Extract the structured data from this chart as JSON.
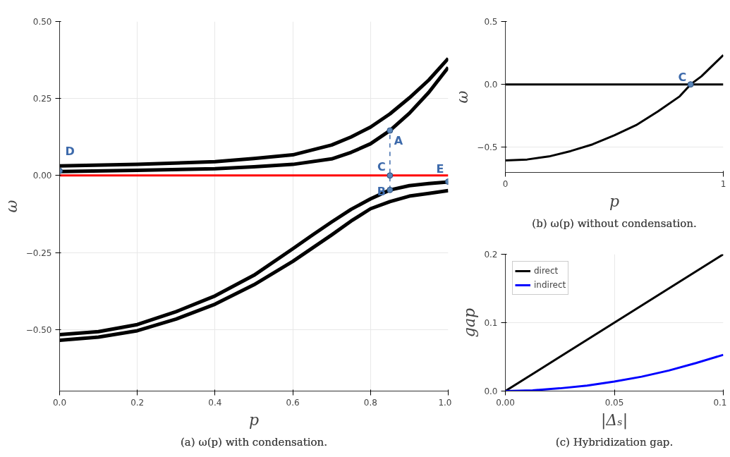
{
  "chart_data": [
    {
      "type": "line",
      "title": "(a) ω(p) with condensation.",
      "xlabel": "p",
      "ylabel": "ω",
      "xlim": [
        0,
        1
      ],
      "ylim": [
        -0.7,
        0.5
      ],
      "xticks": [
        {
          "value": 0,
          "label": "0.0"
        },
        {
          "value": 0.2,
          "label": "0.2"
        },
        {
          "value": 0.4,
          "label": "0.4"
        },
        {
          "value": 0.6,
          "label": "0.6"
        },
        {
          "value": 0.8,
          "label": "0.8"
        },
        {
          "value": 1,
          "label": "1.0"
        }
      ],
      "yticks": [
        {
          "value": -0.5,
          "label": "−0.50"
        },
        {
          "value": -0.25,
          "label": "−0.25"
        },
        {
          "value": 0,
          "label": "0.00"
        },
        {
          "value": 0.25,
          "label": "0.25"
        },
        {
          "value": 0.5,
          "label": "0.50"
        }
      ],
      "grid": true,
      "legend": false,
      "series": [
        {
          "color": "#000000",
          "x": [
            0,
            0.2,
            0.4,
            0.5,
            0.6,
            0.7,
            0.75,
            0.8,
            0.85,
            0.9,
            0.95,
            1
          ],
          "values": [
            0.031,
            0.036,
            0.045,
            0.055,
            0.067,
            0.099,
            0.125,
            0.157,
            0.2,
            0.252,
            0.31,
            0.38
          ]
        },
        {
          "color": "#000000",
          "x": [
            0,
            0.2,
            0.4,
            0.5,
            0.6,
            0.7,
            0.75,
            0.8,
            0.85,
            0.9,
            0.95,
            1
          ],
          "values": [
            0.013,
            0.017,
            0.022,
            0.028,
            0.036,
            0.054,
            0.075,
            0.103,
            0.146,
            0.202,
            0.27,
            0.351
          ]
        },
        {
          "color": "#000000",
          "x": [
            0,
            0.1,
            0.2,
            0.3,
            0.4,
            0.5,
            0.6,
            0.65,
            0.7,
            0.75,
            0.8,
            0.85,
            0.9,
            0.95,
            1
          ],
          "values": [
            -0.517,
            -0.507,
            -0.484,
            -0.442,
            -0.391,
            -0.324,
            -0.238,
            -0.194,
            -0.151,
            -0.11,
            -0.076,
            -0.047,
            -0.033,
            -0.026,
            -0.021
          ]
        },
        {
          "color": "#000000",
          "x": [
            0,
            0.1,
            0.2,
            0.3,
            0.4,
            0.5,
            0.6,
            0.65,
            0.7,
            0.75,
            0.8,
            0.85,
            0.9,
            0.95,
            1
          ],
          "values": [
            -0.535,
            -0.525,
            -0.504,
            -0.466,
            -0.418,
            -0.355,
            -0.279,
            -0.236,
            -0.193,
            -0.148,
            -0.108,
            -0.085,
            -0.067,
            -0.058,
            -0.049
          ]
        },
        {
          "color": "#ff0000",
          "x": [
            0,
            1
          ],
          "values": [
            0,
            0
          ]
        },
        {
          "color": "#3d6aab",
          "line_style": "dashed",
          "x": [
            0.85,
            0.85
          ],
          "values": [
            -0.047,
            0.146
          ]
        },
        {
          "type": "scatter",
          "marker": "circle",
          "color": "#5b86b8",
          "x": [
            0.85,
            0.85,
            0.85,
            0,
            1
          ],
          "values": [
            0.146,
            -0.047,
            0,
            0.015,
            -0.02
          ]
        }
      ],
      "annotations": [
        {
          "text": "A",
          "x": 0.85,
          "y": 0.146
        },
        {
          "text": "B",
          "x": 0.85,
          "y": -0.047
        },
        {
          "text": "C",
          "x": 0.85,
          "y": 0
        },
        {
          "text": "D",
          "x": 0,
          "y": 0.015
        },
        {
          "text": "E",
          "x": 1,
          "y": -0.02
        }
      ]
    },
    {
      "type": "line",
      "title": "(b) ω(p) without condensation.",
      "xlabel": "p",
      "ylabel": "ω",
      "xlim": [
        0,
        1
      ],
      "ylim": [
        -0.7,
        0.5
      ],
      "xticks": [
        0,
        1
      ],
      "yticks": [
        {
          "value": -0.5,
          "label": "−0.5"
        },
        {
          "value": 0,
          "label": "0.0"
        },
        {
          "value": 0.5,
          "label": "0.5"
        }
      ],
      "grid": true,
      "legend": false,
      "series": [
        {
          "color": "#000000",
          "x": [
            0,
            1
          ],
          "values": [
            0,
            0
          ]
        },
        {
          "color": "#000000",
          "x": [
            0,
            0.1,
            0.2,
            0.3,
            0.4,
            0.5,
            0.6,
            0.7,
            0.8,
            0.85,
            0.9,
            1
          ],
          "values": [
            -0.605,
            -0.597,
            -0.573,
            -0.53,
            -0.477,
            -0.405,
            -0.324,
            -0.215,
            -0.095,
            0,
            0.065,
            0.233
          ]
        },
        {
          "type": "scatter",
          "marker": "circle",
          "color": "#5b86b8",
          "x": [
            0.85
          ],
          "values": [
            0
          ]
        }
      ],
      "annotations": [
        {
          "text": "C",
          "x": 0.85,
          "y": 0
        }
      ]
    },
    {
      "type": "line",
      "title": "(c) Hybridization gap.",
      "xlabel": "|Δₛ|",
      "ylabel": "gap",
      "xlim": [
        0,
        0.1
      ],
      "ylim": [
        0,
        0.2
      ],
      "xticks": [
        {
          "value": 0,
          "label": "0.00"
        },
        0.05,
        0.1
      ],
      "yticks": [
        {
          "value": 0,
          "label": "0.0"
        },
        0.1,
        0.2
      ],
      "grid": true,
      "legend": "top left",
      "series": [
        {
          "name": "direct",
          "color": "#000000",
          "x": [
            0,
            0.1
          ],
          "values": [
            0,
            0.2
          ]
        },
        {
          "name": "indirect",
          "color": "#0000ff",
          "x": [
            0,
            0.0125,
            0.025,
            0.0375,
            0.05,
            0.0625,
            0.075,
            0.0875,
            0.1
          ],
          "values": [
            0,
            0.001,
            0.004,
            0.008,
            0.014,
            0.021,
            0.03,
            0.041,
            0.053
          ]
        }
      ]
    }
  ]
}
